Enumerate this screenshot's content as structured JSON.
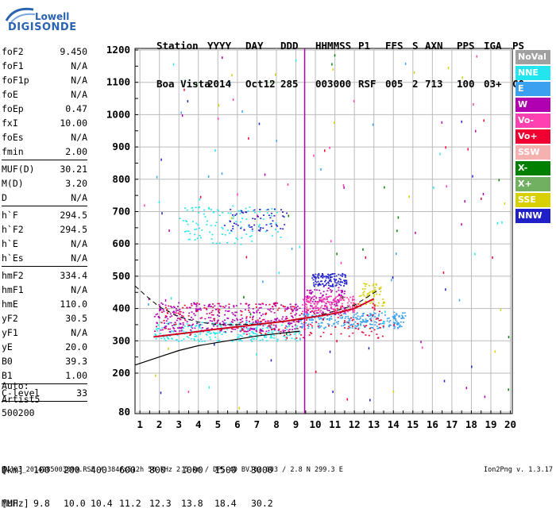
{
  "logo": {
    "line1": "Lowell",
    "line2": "DIGISONDE"
  },
  "header": {
    "row1": [
      "Station",
      "YYYY",
      "DAY",
      "DDD",
      "HHMMSS",
      "P1",
      "FFS",
      "S",
      "AXN",
      "PPS",
      "IGA",
      "PS"
    ],
    "row2": [
      "Boa Vista",
      "2014",
      "Oct12",
      "285",
      "003000",
      "RSF",
      "005",
      "2",
      "713",
      "100",
      "03+",
      "C0"
    ]
  },
  "params_group1": [
    {
      "k": "foF2",
      "v": "9.450"
    },
    {
      "k": "foF1",
      "v": "N/A"
    },
    {
      "k": "foF1p",
      "v": "N/A"
    },
    {
      "k": "foE",
      "v": "N/A"
    },
    {
      "k": "foEp",
      "v": "0.47"
    },
    {
      "k": "fxI",
      "v": "10.00"
    },
    {
      "k": "foEs",
      "v": "N/A"
    },
    {
      "k": "fmin",
      "v": "2.00"
    }
  ],
  "params_group2": [
    {
      "k": "MUF(D)",
      "v": "30.21"
    },
    {
      "k": "M(D)",
      "v": "3.20"
    },
    {
      "k": "D",
      "v": "N/A"
    }
  ],
  "params_group3": [
    {
      "k": "h`F",
      "v": "294.5"
    },
    {
      "k": "h`F2",
      "v": "294.5"
    },
    {
      "k": "h`E",
      "v": "N/A"
    },
    {
      "k": "h`Es",
      "v": "N/A"
    }
  ],
  "params_group4": [
    {
      "k": "hmF2",
      "v": "334.4"
    },
    {
      "k": "hmF1",
      "v": "N/A"
    },
    {
      "k": "hmE",
      "v": "110.0"
    },
    {
      "k": "yF2",
      "v": "30.5"
    },
    {
      "k": "yF1",
      "v": "N/A"
    },
    {
      "k": "yE",
      "v": "20.0"
    },
    {
      "k": "B0",
      "v": "39.3"
    },
    {
      "k": "B1",
      "v": "1.00"
    }
  ],
  "params_group5": [
    {
      "k": "C-level",
      "v": "33"
    }
  ],
  "auto": {
    "l1": "Auto:",
    "l2": "Artist5",
    "l3": "500200"
  },
  "legend": [
    {
      "label": "NoVal",
      "color": "#a0a0a0"
    },
    {
      "label": "NNE",
      "color": "#22e5f0"
    },
    {
      "label": "E",
      "color": "#3ca0f0"
    },
    {
      "label": "W",
      "color": "#b000b0"
    },
    {
      "label": "Vo-",
      "color": "#ff40b0"
    },
    {
      "label": "Vo+",
      "color": "#f00030"
    },
    {
      "label": "SSW",
      "color": "#f5b0b0"
    },
    {
      "label": "X-",
      "color": "#008000"
    },
    {
      "label": "X+",
      "color": "#70b060"
    },
    {
      "label": "SSE",
      "color": "#d8d000"
    },
    {
      "label": "NNW",
      "color": "#2020c8"
    }
  ],
  "dmuf": {
    "d_label": "D",
    "d_values": [
      "100",
      "200",
      "400",
      "600",
      "800",
      "1000",
      "1500",
      "3000"
    ],
    "d_unit": "[km]",
    "muf_label": "MUF",
    "muf_values": [
      "9.8",
      "10.0",
      "10.4",
      "11.2",
      "12.3",
      "13.8",
      "18.4",
      "30.2"
    ],
    "muf_unit": "[MHz]"
  },
  "footer": "BVJ03_2014285003000.RSF / 384fx512h 50 kHz 2.5 km / DPS-4D BVJ03 003 / 2.8 N 299.3 E",
  "version": "Ion2Png v. 1.3.17",
  "chart_data": {
    "type": "scatter",
    "x_ticks": [
      1,
      2,
      3,
      4,
      5,
      6,
      7,
      8,
      9,
      10,
      11,
      12,
      13,
      14,
      15,
      16,
      17,
      18,
      19,
      20
    ],
    "y_ticks": [
      80,
      200,
      300,
      400,
      500,
      600,
      700,
      800,
      900,
      1000,
      1100,
      1200
    ],
    "xlim": [
      0.75,
      20.1
    ],
    "ylim": [
      80,
      1210
    ],
    "grid": true,
    "legend_position": "right",
    "foF2_marker": 9.45,
    "trace_clusters": [
      {
        "dir": "NNE",
        "color": "#22e5f0",
        "x": [
          1.7,
          9.2
        ],
        "y": [
          300,
          360
        ],
        "n": 260
      },
      {
        "dir": "E",
        "color": "#3ca0f0",
        "x": [
          9.2,
          14.6
        ],
        "y": [
          340,
          390
        ],
        "n": 260
      },
      {
        "dir": "W",
        "color": "#b000b0",
        "x": [
          1.7,
          9.2
        ],
        "y": [
          330,
          420
        ],
        "n": 380
      },
      {
        "dir": "W",
        "color": "#b000b0",
        "x": [
          9.5,
          11.5
        ],
        "y": [
          380,
          470
        ],
        "n": 120
      },
      {
        "dir": "Vo-",
        "color": "#ff40b0",
        "x": [
          9.3,
          12.0
        ],
        "y": [
          390,
          440
        ],
        "n": 150
      },
      {
        "dir": "Vo+",
        "color": "#f00030",
        "x": [
          2.0,
          13.5
        ],
        "y": [
          310,
          420
        ],
        "n": 200
      },
      {
        "dir": "SSE",
        "color": "#d8d000",
        "x": [
          12.2,
          13.5
        ],
        "y": [
          410,
          480
        ],
        "n": 60
      },
      {
        "dir": "NNW",
        "color": "#2020c8",
        "x": [
          9.8,
          11.6
        ],
        "y": [
          470,
          510
        ],
        "n": 120
      },
      {
        "dir": "NNE",
        "color": "#22e5f0",
        "x": [
          3.0,
          8.2
        ],
        "y": [
          600,
          720
        ],
        "n": 110
      },
      {
        "dir": "NNW",
        "color": "#2020c8",
        "x": [
          5.3,
          8.5
        ],
        "y": [
          640,
          710
        ],
        "n": 60
      }
    ],
    "profile_curve": {
      "x": [
        0.75,
        2,
        3,
        4,
        5,
        6,
        7,
        8,
        9.2
      ],
      "y": [
        225,
        250,
        270,
        285,
        295,
        305,
        315,
        322,
        330
      ]
    },
    "upper_dashed_curve": {
      "x": [
        0.75,
        1.3,
        2,
        3,
        4,
        5,
        6,
        7,
        8,
        9.2,
        10,
        12,
        13.3
      ],
      "y": [
        470,
        440,
        405,
        375,
        358,
        350,
        350,
        352,
        358,
        365,
        375,
        410,
        460
      ]
    },
    "red_trace": {
      "x": [
        1.7,
        2.5,
        3.5,
        4.5,
        5.5,
        6.5,
        7.5,
        8.5,
        9.2,
        10,
        11,
        12,
        13
      ],
      "y": [
        312,
        318,
        325,
        333,
        340,
        347,
        354,
        361,
        368,
        375,
        385,
        400,
        430
      ]
    }
  }
}
